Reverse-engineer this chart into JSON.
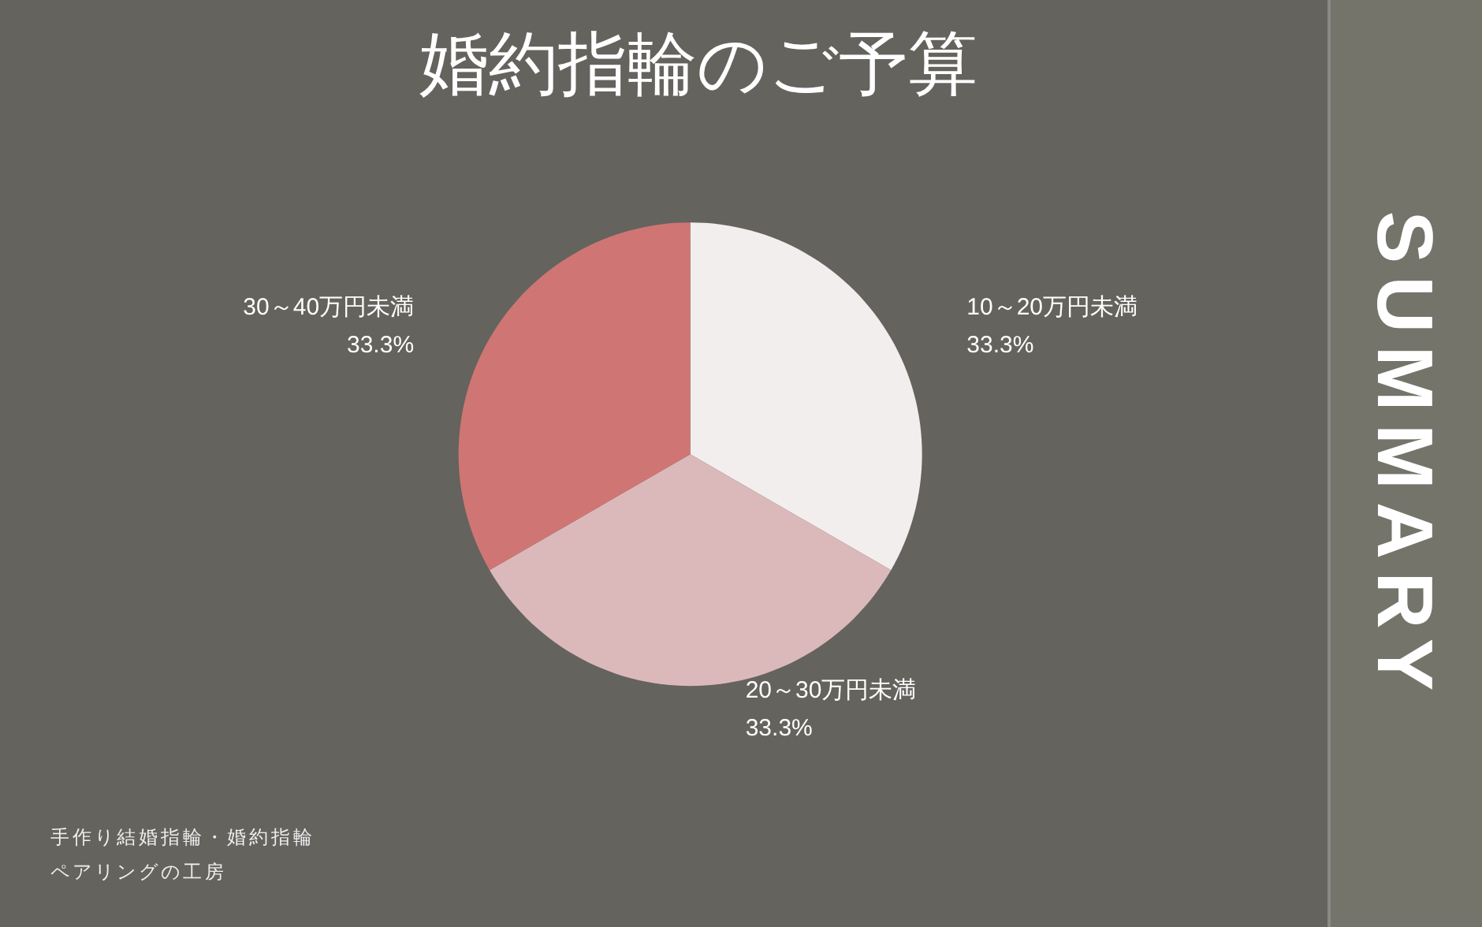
{
  "chart_data": {
    "type": "pie",
    "title": "婚約指輪のご予算",
    "categories": [
      "10～20万円未満",
      "20～30万円未満",
      "30～40万円未満"
    ],
    "values": [
      33.3,
      33.3,
      33.3
    ],
    "value_labels": [
      "33.3%",
      "33.3%",
      "33.3%"
    ],
    "colors": [
      "#f3eeee",
      "#dbb9ba",
      "#cf7674"
    ],
    "annotations": [
      "SUMMARY",
      "手作り結婚指輪・婚約指輪",
      "ペアリングの工房"
    ],
    "legend": false
  }
}
